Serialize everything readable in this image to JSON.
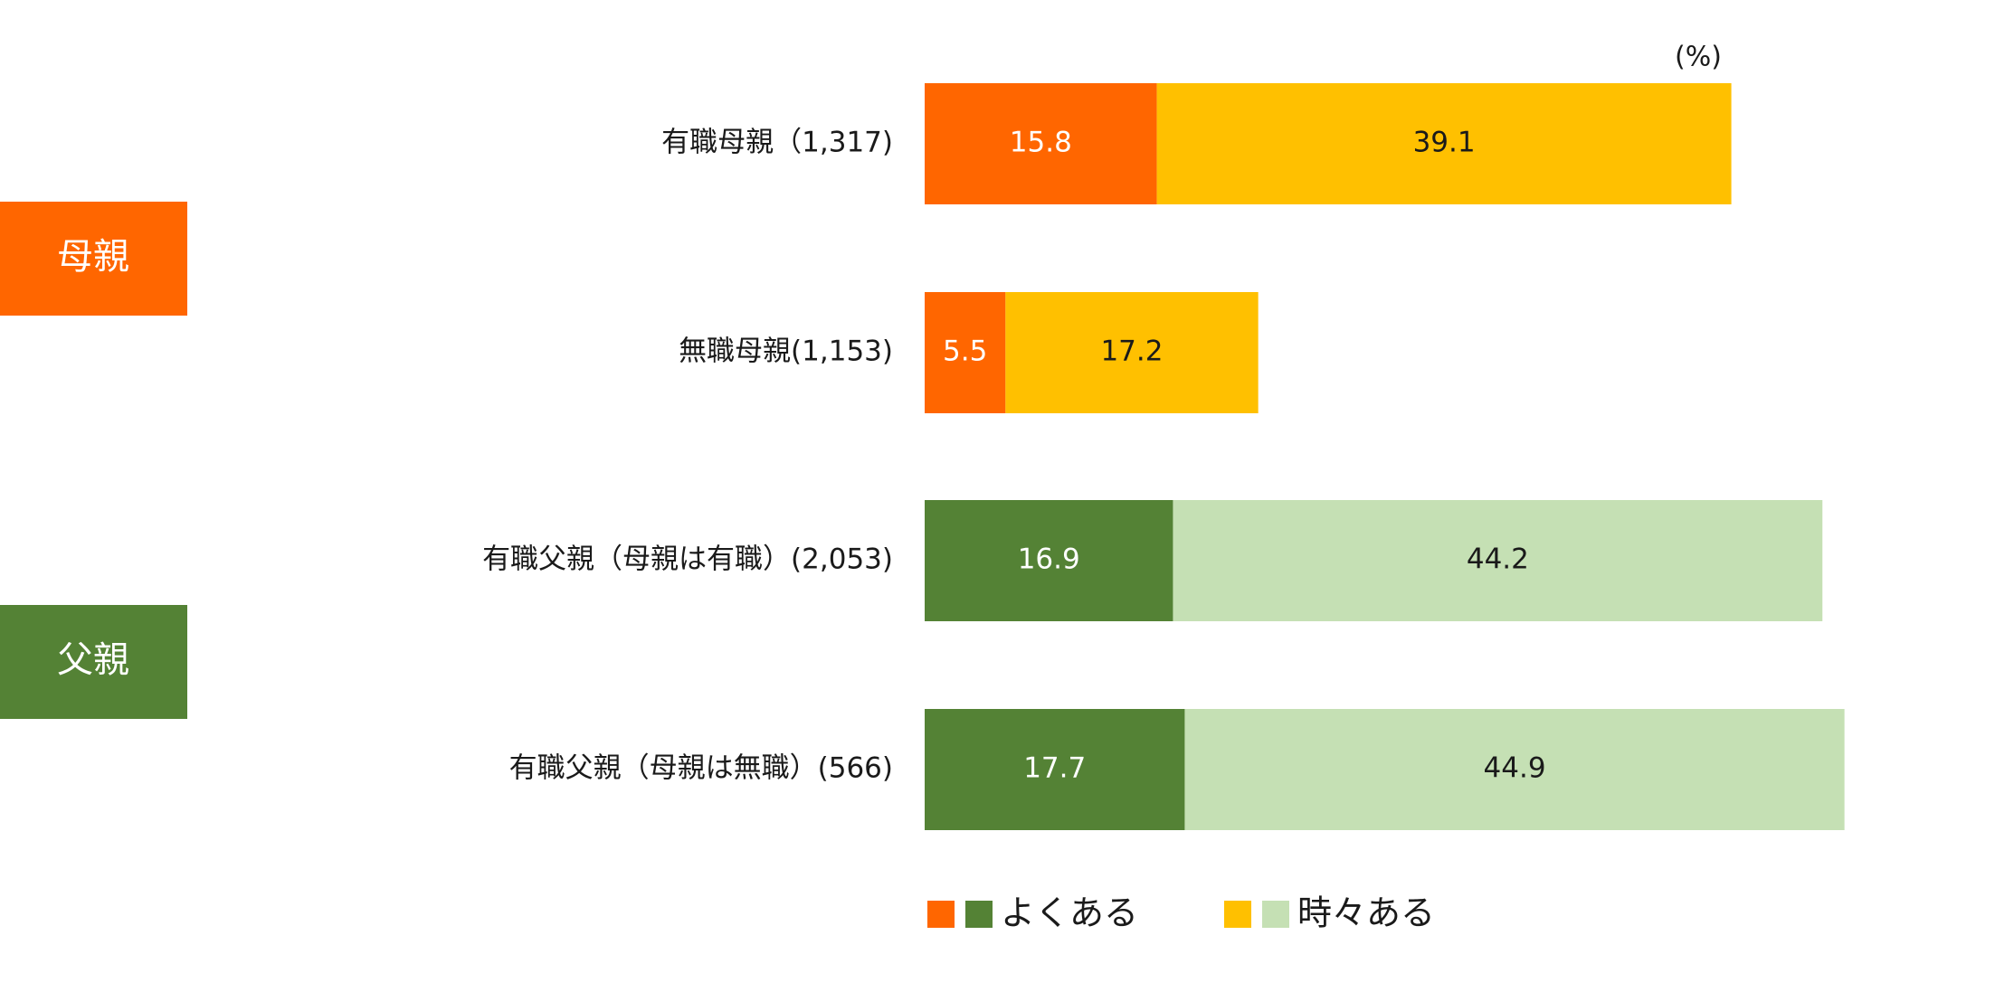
{
  "chart_data": {
    "type": "bar",
    "orientation": "horizontal",
    "stacked": true,
    "unit_label": "(%)",
    "categories": [
      "有職母親（1,317)",
      "無職母親(1,153)",
      "有職父親（母親は有職）(2,053)",
      "有職父親（母親は無職）(566)"
    ],
    "series": [
      {
        "name": "よくある",
        "values": [
          15.8,
          5.5,
          16.9,
          17.7
        ]
      },
      {
        "name": "時々ある",
        "values": [
          39.1,
          17.2,
          44.2,
          44.9
        ]
      }
    ],
    "xlim": [
      0,
      70
    ],
    "grid": false,
    "legend_position": "bottom",
    "colors": {
      "mother_often": "#FF6600",
      "mother_sometimes": "#FFC000",
      "father_often": "#548235",
      "father_sometimes": "#C5E0B4"
    },
    "label_text_colors": {
      "often": "#ffffff",
      "sometimes": "#1a1a1a"
    }
  },
  "groups": [
    {
      "label": "母親",
      "color": "#FF6600"
    },
    {
      "label": "父親",
      "color": "#548235"
    }
  ]
}
